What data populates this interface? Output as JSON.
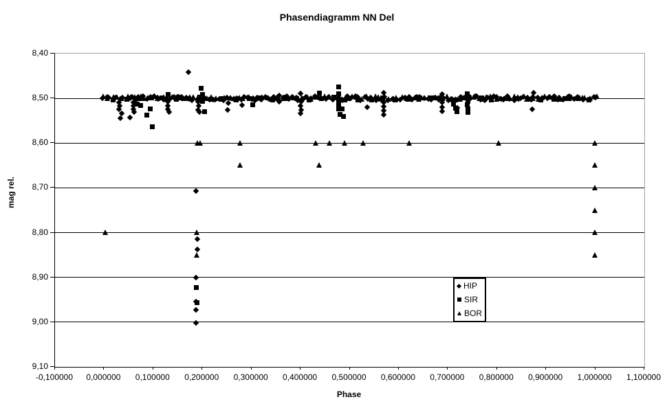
{
  "chart_data": {
    "type": "scatter",
    "title": "Phasendiagramm NN Del",
    "xlabel": "Phase",
    "ylabel": "mag rel.",
    "x_axis": {
      "min": -0.1,
      "max": 1.1,
      "tick_values": [
        -0.1,
        0.0,
        0.1,
        0.2,
        0.3,
        0.4,
        0.5,
        0.6,
        0.7,
        0.8,
        0.9,
        1.0,
        1.1
      ],
      "tick_labels": [
        "-0,100000",
        "0,000000",
        "0,100000",
        "0,200000",
        "0,300000",
        "0,400000",
        "0,500000",
        "0,600000",
        "0,700000",
        "0,800000",
        "0,900000",
        "1,000000",
        "1,100000"
      ]
    },
    "y_axis": {
      "min": 8.4,
      "max": 9.1,
      "inverted": true,
      "tick_values": [
        8.4,
        8.5,
        8.6,
        8.7,
        8.8,
        8.9,
        9.0,
        9.1
      ],
      "tick_labels": [
        "8,40",
        "8,50",
        "8,60",
        "8,70",
        "8,80",
        "8,90",
        "9,00",
        "9,10"
      ]
    },
    "grid": {
      "horizontal_gridlines": true,
      "vertical_gridlines": false,
      "gridline_color": "#000000",
      "plot_border_color": "#a0a0a0"
    },
    "legend": {
      "position": "right-center",
      "entries": [
        {
          "label": "HIP",
          "marker": "diamond"
        },
        {
          "label": "SIR",
          "marker": "square"
        },
        {
          "label": "BOR",
          "marker": "triangle"
        }
      ]
    },
    "marker_color": "#000000",
    "series": [
      {
        "name": "HIP",
        "marker": "diamond",
        "color": "#000000",
        "band": {
          "note": "dense overplotted ridge at maximum light",
          "y_center": 8.5,
          "y_spread": 0.0045,
          "phase_start": -0.002,
          "phase_end": 1.003,
          "approx_count": 150,
          "seed": 13
        },
        "points": [
          [
            0.171,
            8.441
          ],
          [
            0.03,
            8.509
          ],
          [
            0.031,
            8.517
          ],
          [
            0.03,
            8.524
          ],
          [
            0.036,
            8.534
          ],
          [
            0.033,
            8.545
          ],
          [
            0.053,
            8.543
          ],
          [
            0.059,
            8.509
          ],
          [
            0.06,
            8.517
          ],
          [
            0.059,
            8.525
          ],
          [
            0.061,
            8.531
          ],
          [
            0.129,
            8.508
          ],
          [
            0.13,
            8.516
          ],
          [
            0.129,
            8.524
          ],
          [
            0.133,
            8.53
          ],
          [
            0.191,
            8.508
          ],
          [
            0.192,
            8.517
          ],
          [
            0.191,
            8.526
          ],
          [
            0.194,
            8.531
          ],
          [
            0.187,
            8.707
          ],
          [
            0.19,
            8.815
          ],
          [
            0.19,
            8.838
          ],
          [
            0.187,
            8.9
          ],
          [
            0.187,
            8.954
          ],
          [
            0.187,
            8.972
          ],
          [
            0.187,
            9.001
          ],
          [
            0.253,
            8.51
          ],
          [
            0.252,
            8.526
          ],
          [
            0.281,
            8.515
          ],
          [
            0.356,
            8.494
          ],
          [
            0.357,
            8.507
          ],
          [
            0.4,
            8.489
          ],
          [
            0.401,
            8.508
          ],
          [
            0.4,
            8.517
          ],
          [
            0.401,
            8.526
          ],
          [
            0.4,
            8.534
          ],
          [
            0.536,
            8.519
          ],
          [
            0.569,
            8.488
          ],
          [
            0.57,
            8.509
          ],
          [
            0.569,
            8.518
          ],
          [
            0.57,
            8.527
          ],
          [
            0.569,
            8.536
          ],
          [
            0.688,
            8.49
          ],
          [
            0.689,
            8.509
          ],
          [
            0.688,
            8.519
          ],
          [
            0.689,
            8.529
          ],
          [
            0.71,
            8.506
          ],
          [
            0.719,
            8.522
          ],
          [
            0.874,
            8.487
          ],
          [
            0.872,
            8.525
          ]
        ]
      },
      {
        "name": "SIR",
        "marker": "square",
        "color": "#000000",
        "band": {
          "note": "dense overplotted ridge at maximum light",
          "y_center": 8.501,
          "y_spread": 0.003,
          "phase_start": 0.02,
          "phase_end": 0.99,
          "approx_count": 40,
          "seed": 29
        },
        "points": [
          [
            0.067,
            8.513
          ],
          [
            0.074,
            8.516
          ],
          [
            0.094,
            8.523
          ],
          [
            0.087,
            8.538
          ],
          [
            0.098,
            8.563
          ],
          [
            0.131,
            8.492
          ],
          [
            0.197,
            8.477
          ],
          [
            0.2,
            8.492
          ],
          [
            0.201,
            8.506
          ],
          [
            0.204,
            8.53
          ],
          [
            0.188,
            8.922
          ],
          [
            0.189,
            8.956
          ],
          [
            0.302,
            8.515
          ],
          [
            0.438,
            8.489
          ],
          [
            0.477,
            8.474
          ],
          [
            0.477,
            8.49
          ],
          [
            0.477,
            8.506
          ],
          [
            0.478,
            8.515
          ],
          [
            0.477,
            8.523
          ],
          [
            0.485,
            8.524
          ],
          [
            0.48,
            8.536
          ],
          [
            0.487,
            8.541
          ],
          [
            0.712,
            8.513
          ],
          [
            0.715,
            8.522
          ],
          [
            0.718,
            8.53
          ],
          [
            0.74,
            8.49
          ],
          [
            0.741,
            8.506
          ],
          [
            0.74,
            8.515
          ],
          [
            0.741,
            8.524
          ],
          [
            0.741,
            8.532
          ]
        ]
      },
      {
        "name": "BOR",
        "marker": "triangle",
        "color": "#000000",
        "band": {
          "note": "dense overplotted ridge at maximum light",
          "y_center": 8.4985,
          "y_spread": 0.0035,
          "phase_start": 0.0,
          "phase_end": 1.0,
          "approx_count": 110,
          "seed": 53
        },
        "points": [
          [
            0.002,
            8.799
          ],
          [
            0.19,
            8.6
          ],
          [
            0.195,
            8.6
          ],
          [
            0.188,
            8.799
          ],
          [
            0.189,
            8.85
          ],
          [
            0.277,
            8.6
          ],
          [
            0.276,
            8.648
          ],
          [
            0.43,
            8.6
          ],
          [
            0.438,
            8.648
          ],
          [
            0.458,
            8.6
          ],
          [
            0.49,
            8.6
          ],
          [
            0.528,
            8.6
          ],
          [
            0.621,
            8.6
          ],
          [
            0.803,
            8.6
          ],
          [
            0.999,
            8.6
          ],
          [
            0.999,
            8.648
          ],
          [
            0.999,
            8.7
          ],
          [
            0.999,
            8.75
          ],
          [
            0.999,
            8.799
          ],
          [
            0.999,
            8.85
          ]
        ]
      }
    ]
  }
}
